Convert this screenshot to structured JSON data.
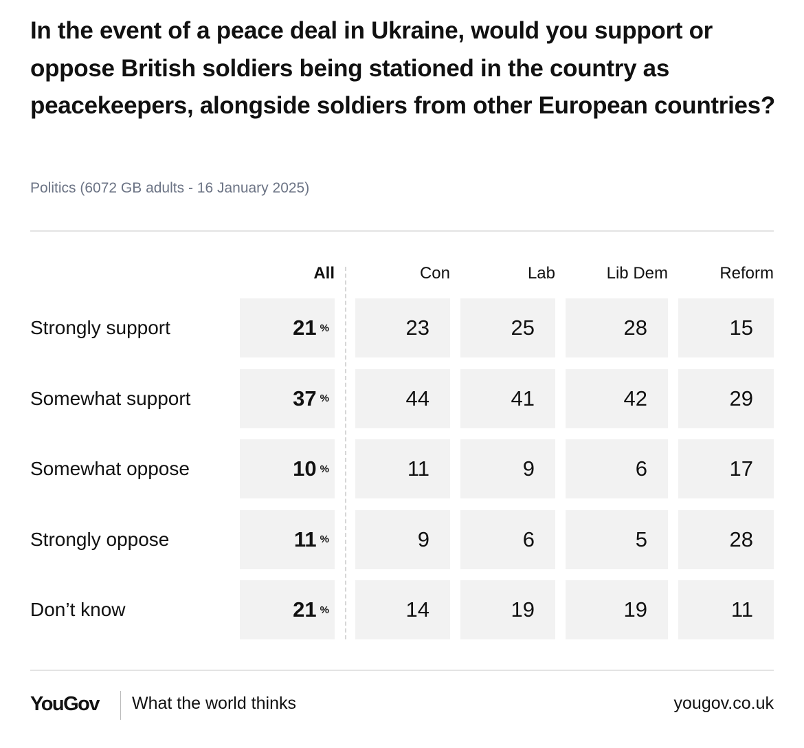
{
  "header": {
    "title": "In the event of a peace deal in Ukraine, would you support or oppose British soldiers being stationed in the country as peacekeepers, alongside soldiers from other European countries?",
    "subtitle": "Politics (6072 GB adults - 16 January 2025)"
  },
  "table": {
    "columns": [
      "All",
      "Con",
      "Lab",
      "Lib Dem",
      "Reform"
    ],
    "unit": "%",
    "rows": [
      {
        "label": "Strongly support",
        "values": [
          21,
          23,
          25,
          28,
          15
        ]
      },
      {
        "label": "Somewhat support",
        "values": [
          37,
          44,
          41,
          42,
          29
        ]
      },
      {
        "label": "Somewhat oppose",
        "values": [
          10,
          11,
          9,
          6,
          17
        ]
      },
      {
        "label": "Strongly oppose",
        "values": [
          11,
          9,
          6,
          5,
          28
        ]
      },
      {
        "label": "Don’t know",
        "values": [
          21,
          14,
          19,
          19,
          11
        ]
      }
    ]
  },
  "footer": {
    "logo": "YouGov",
    "tagline": "What the world thinks",
    "url": "yougov.co.uk"
  }
}
